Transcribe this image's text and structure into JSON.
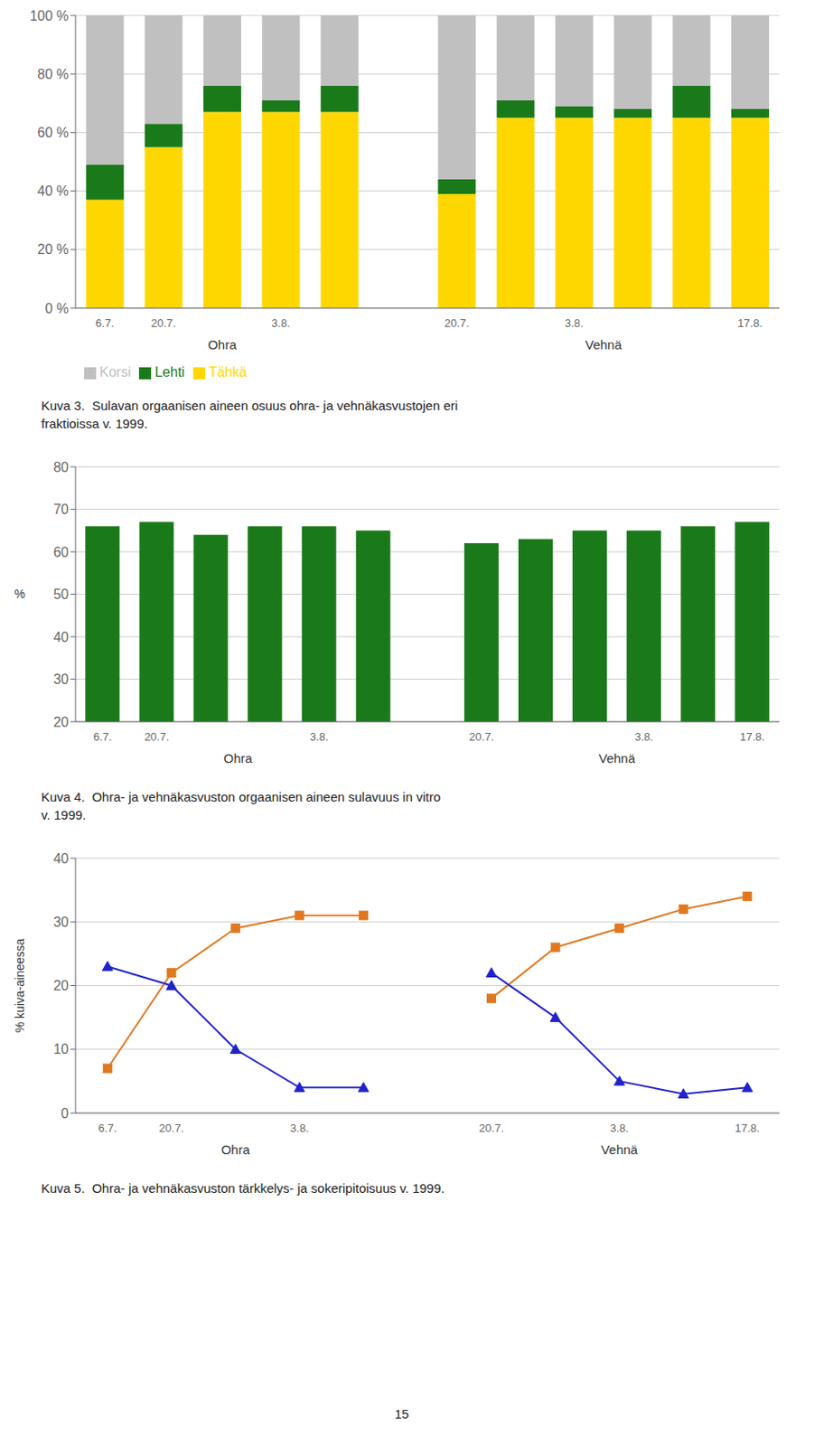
{
  "chart_data": [
    {
      "type": "bar",
      "title": "Kuva 3.  Sulavan orgaanisen aineen osuus ohra- ja vehnäkasvustojen eri\nfraktioissa v. 1999.",
      "categories": [
        "6.7.",
        "20.7.",
        null,
        "3.8.",
        null,
        null,
        "20.7.",
        null,
        "3.8.",
        null,
        null,
        "17.8."
      ],
      "series": [
        {
          "name": "Tähkä",
          "color": "#FFD700",
          "values": [
            37,
            55,
            67,
            67,
            67,
            null,
            39,
            65,
            65,
            65,
            65,
            65
          ]
        },
        {
          "name": "Lehti",
          "color": "#1A7A1A",
          "values": [
            12,
            8,
            9,
            4,
            9,
            null,
            5,
            6,
            4,
            3,
            11,
            3
          ]
        },
        {
          "name": "Korsi",
          "color": "#C0C0C0",
          "values": [
            51,
            37,
            24,
            29,
            24,
            null,
            56,
            29,
            31,
            32,
            24,
            32
          ]
        }
      ],
      "stacked": true,
      "ylim": [
        0,
        100
      ],
      "yticks": [
        {
          "value": 0,
          "label": "0 %"
        },
        {
          "value": 20,
          "label": "20 %"
        },
        {
          "value": 40,
          "label": "40 %"
        },
        {
          "value": 60,
          "label": "60 %"
        },
        {
          "value": 80,
          "label": "80 %"
        },
        {
          "value": 100,
          "label": "100 %"
        }
      ],
      "grid": true,
      "legend": "bottom",
      "annotations": [
        "Ohra",
        "Vehnä"
      ]
    },
    {
      "type": "bar",
      "title": "Kuva 4.  Ohra- ja vehnäkasvuston orgaanisen aineen sulavuus in vitro\nv. 1999.",
      "categories": [
        "6.7.",
        "20.7.",
        null,
        null,
        "3.8.",
        null,
        null,
        "20.7.",
        null,
        null,
        "3.8.",
        null,
        "17.8."
      ],
      "series": [
        {
          "color": "#1A7A1A",
          "values": [
            66,
            67,
            64,
            66,
            66,
            65,
            null,
            62,
            63,
            65,
            65,
            66,
            67
          ]
        }
      ],
      "ylabel": "%",
      "ylim": [
        20,
        80
      ],
      "yticks": [
        20,
        30,
        40,
        50,
        60,
        70,
        80
      ],
      "grid": true,
      "annotations": [
        "Ohra",
        "Vehnä"
      ]
    },
    {
      "type": "line",
      "title": "Kuva 5.  Ohra- ja vehnäkasvuston tärkkelys- ja sokeripitoisuus v. 1999.",
      "categories": [
        "6.7.",
        "20.7.",
        null,
        "3.8.",
        null,
        null,
        "20.7.",
        null,
        "3.8.",
        null,
        "17.8."
      ],
      "series": [
        {
          "color": "#E07820",
          "marker": "square",
          "values": [
            7,
            22,
            29,
            31,
            31,
            null,
            18,
            26,
            29,
            32,
            34
          ]
        },
        {
          "color": "#2222CC",
          "marker": "triangle",
          "values": [
            23,
            20,
            10,
            4,
            4,
            null,
            22,
            15,
            5,
            3,
            4
          ]
        }
      ],
      "ylabel": "% kuiva-aineessa",
      "ylim": [
        0,
        40
      ],
      "yticks": [
        0,
        10,
        20,
        30,
        40
      ],
      "grid": true,
      "annotations": [
        "Ohra",
        "Vehnä"
      ]
    }
  ],
  "annotations": [
    "15"
  ]
}
